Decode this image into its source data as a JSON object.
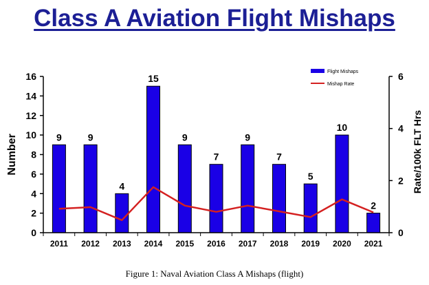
{
  "page": {
    "title": "Class A Aviation Flight Mishaps",
    "caption": "Figure 1: Naval Aviation Class A Mishaps (flight)"
  },
  "colors": {
    "title": "#1c1f95",
    "bar": "#1a00e6",
    "line": "#d42020",
    "axis": "#000000"
  },
  "chart_data": {
    "type": "bar",
    "title": "Class A Aviation Flight Mishaps",
    "categories": [
      "2011",
      "2012",
      "2013",
      "2014",
      "2015",
      "2016",
      "2017",
      "2018",
      "2019",
      "2020",
      "2021"
    ],
    "series": [
      {
        "name": "Flight Mishaps",
        "type": "bar",
        "axis": "left",
        "values": [
          9,
          9,
          4,
          15,
          9,
          7,
          9,
          7,
          5,
          10,
          2
        ]
      },
      {
        "name": "Mishap Rate",
        "type": "line",
        "axis": "right",
        "values": [
          0.92,
          0.98,
          0.48,
          1.75,
          1.04,
          0.8,
          1.04,
          0.82,
          0.6,
          1.28,
          0.78
        ]
      }
    ],
    "ylabel": "Number",
    "y2label": "Rate/100k FLT Hrs",
    "ylim": [
      0,
      16
    ],
    "y2lim": [
      0,
      6
    ],
    "yticks": [
      0,
      2,
      4,
      6,
      8,
      10,
      12,
      14,
      16
    ],
    "y2ticks": [
      0,
      2,
      4,
      6
    ],
    "data_labels": [
      "9",
      "9",
      "4",
      "15",
      "9",
      "7",
      "9",
      "7",
      "5",
      "10",
      "2"
    ],
    "legend": {
      "position": "top-right",
      "items": [
        "Flight Mishaps",
        "Mishap Rate"
      ]
    },
    "grid": false
  }
}
